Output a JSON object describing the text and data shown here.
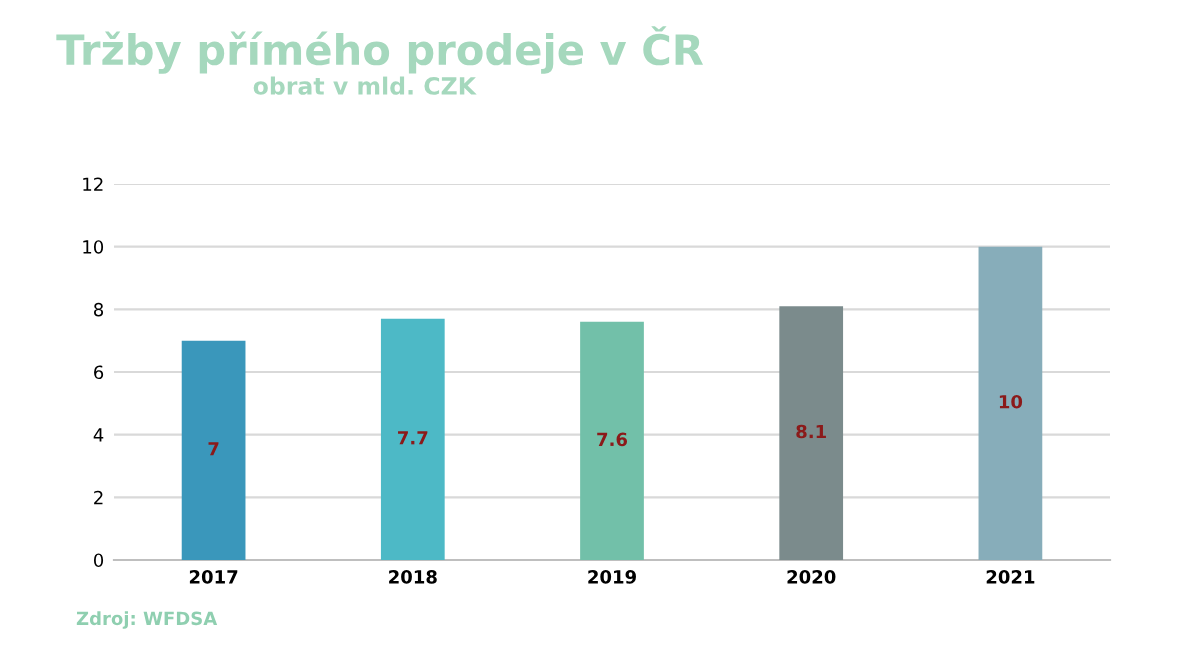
{
  "chart_data": {
    "type": "bar",
    "title": "Tržby přímého prodeje v ČR",
    "subtitle": "obrat v mld. CZK",
    "categories": [
      "2017",
      "2018",
      "2019",
      "2020",
      "2021"
    ],
    "values": [
      7,
      7.7,
      7.6,
      8.1,
      10
    ],
    "colors": [
      "#3a97bb",
      "#4db9c6",
      "#72c0a9",
      "#7b8b8c",
      "#87adba"
    ],
    "ylim": [
      0,
      12
    ],
    "yticks": [
      0,
      2,
      4,
      6,
      8,
      10,
      12
    ],
    "grid": "y",
    "data_labels": true,
    "annotations": [
      "Zdroj: WFDSA"
    ]
  }
}
